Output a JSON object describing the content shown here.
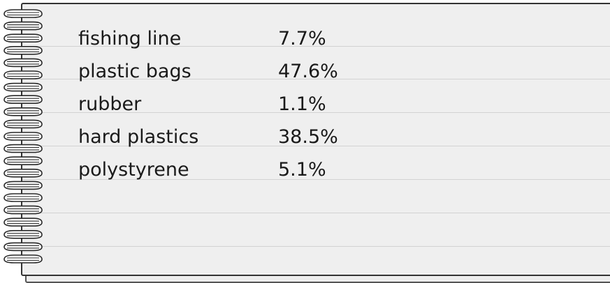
{
  "table": {
    "rows": [
      {
        "item": "fishing line",
        "percent": "7.7%"
      },
      {
        "item": "plastic bags",
        "percent": "47.6%"
      },
      {
        "item": "rubber",
        "percent": "1.1%"
      },
      {
        "item": "hard plastics",
        "percent": "38.5%"
      },
      {
        "item": "polystyrene",
        "percent": "5.1%"
      }
    ]
  }
}
